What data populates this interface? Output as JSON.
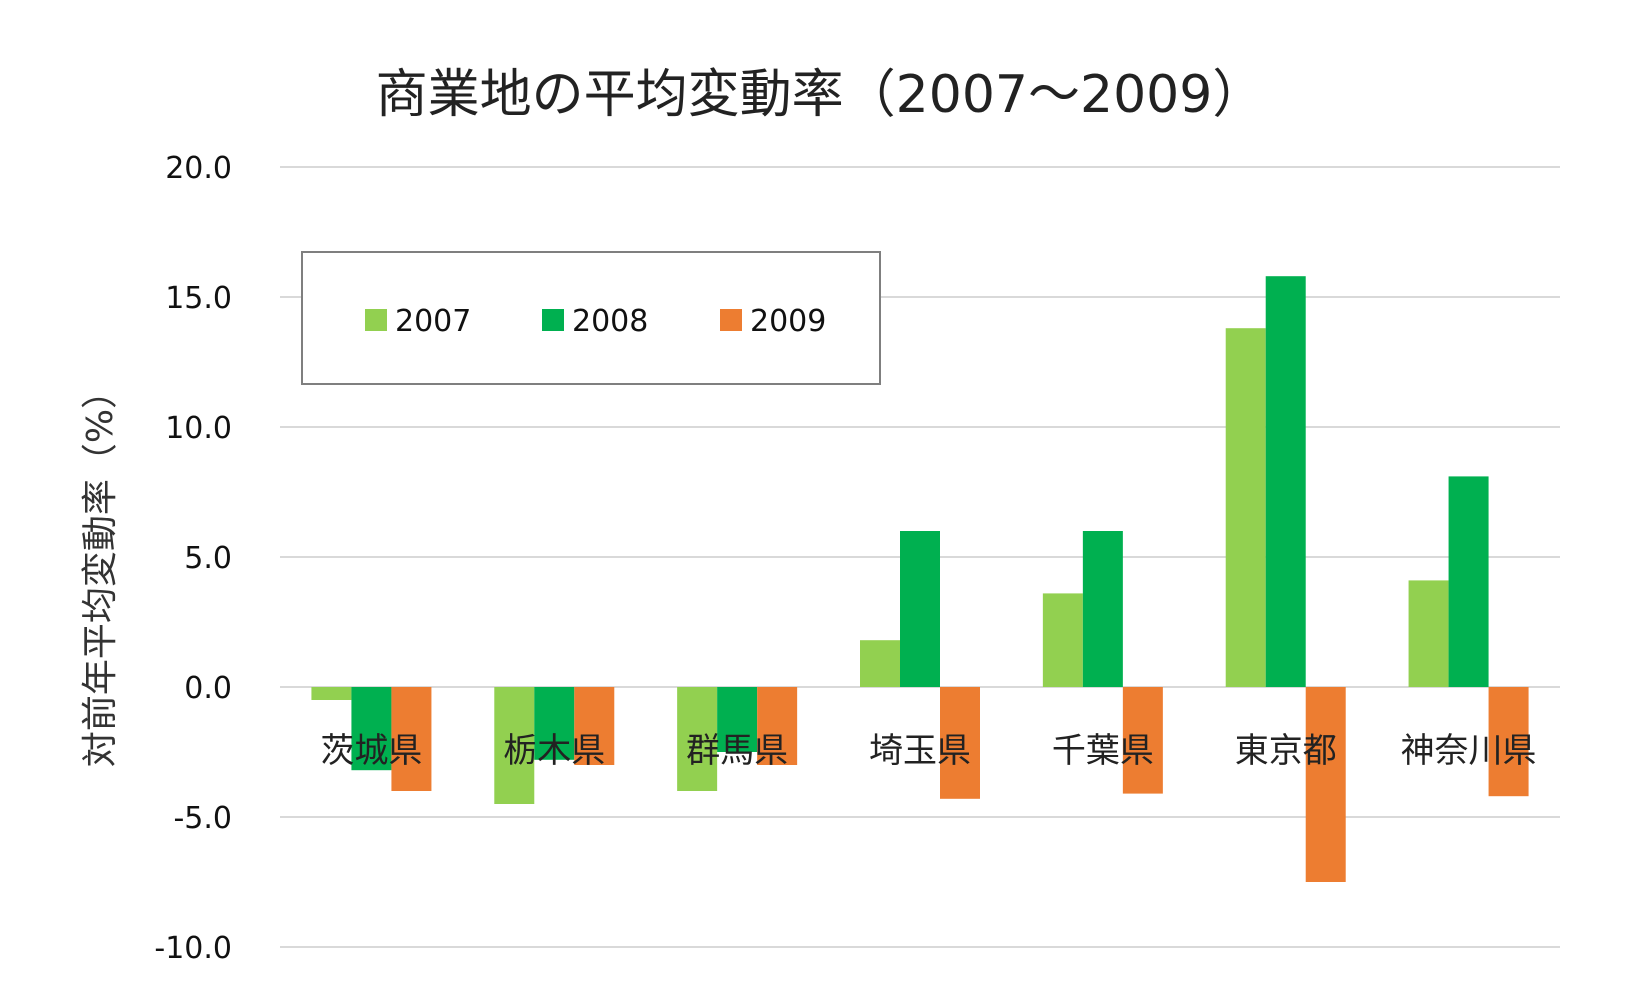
{
  "chart_data": {
    "type": "bar",
    "title": "商業地の平均変動率（2007～2009）",
    "xlabel": "",
    "ylabel": "対前年平均変動率（%）",
    "ylim": [
      -10,
      20
    ],
    "yticks": [
      "20.0",
      "15.0",
      "10.0",
      "5.0",
      "0.0",
      "-5.0",
      "-10.0"
    ],
    "ytick_values": [
      20,
      15,
      10,
      5,
      0,
      -5,
      -10
    ],
    "grid": true,
    "legend_position": "top-left",
    "categories": [
      "茨城県",
      "栃木県",
      "群馬県",
      "埼玉県",
      "千葉県",
      "東京都",
      "神奈川県"
    ],
    "series": [
      {
        "name": "2007",
        "color": "#92d050",
        "values": [
          -0.5,
          -4.5,
          -4.0,
          1.8,
          3.6,
          13.8,
          4.1
        ]
      },
      {
        "name": "2008",
        "color": "#00b050",
        "values": [
          -3.2,
          -2.8,
          -2.5,
          6.0,
          6.0,
          15.8,
          8.1
        ]
      },
      {
        "name": "2009",
        "color": "#ed7d31",
        "values": [
          -4.0,
          -3.0,
          -3.0,
          -4.3,
          -4.1,
          -7.5,
          -4.2
        ]
      }
    ]
  }
}
